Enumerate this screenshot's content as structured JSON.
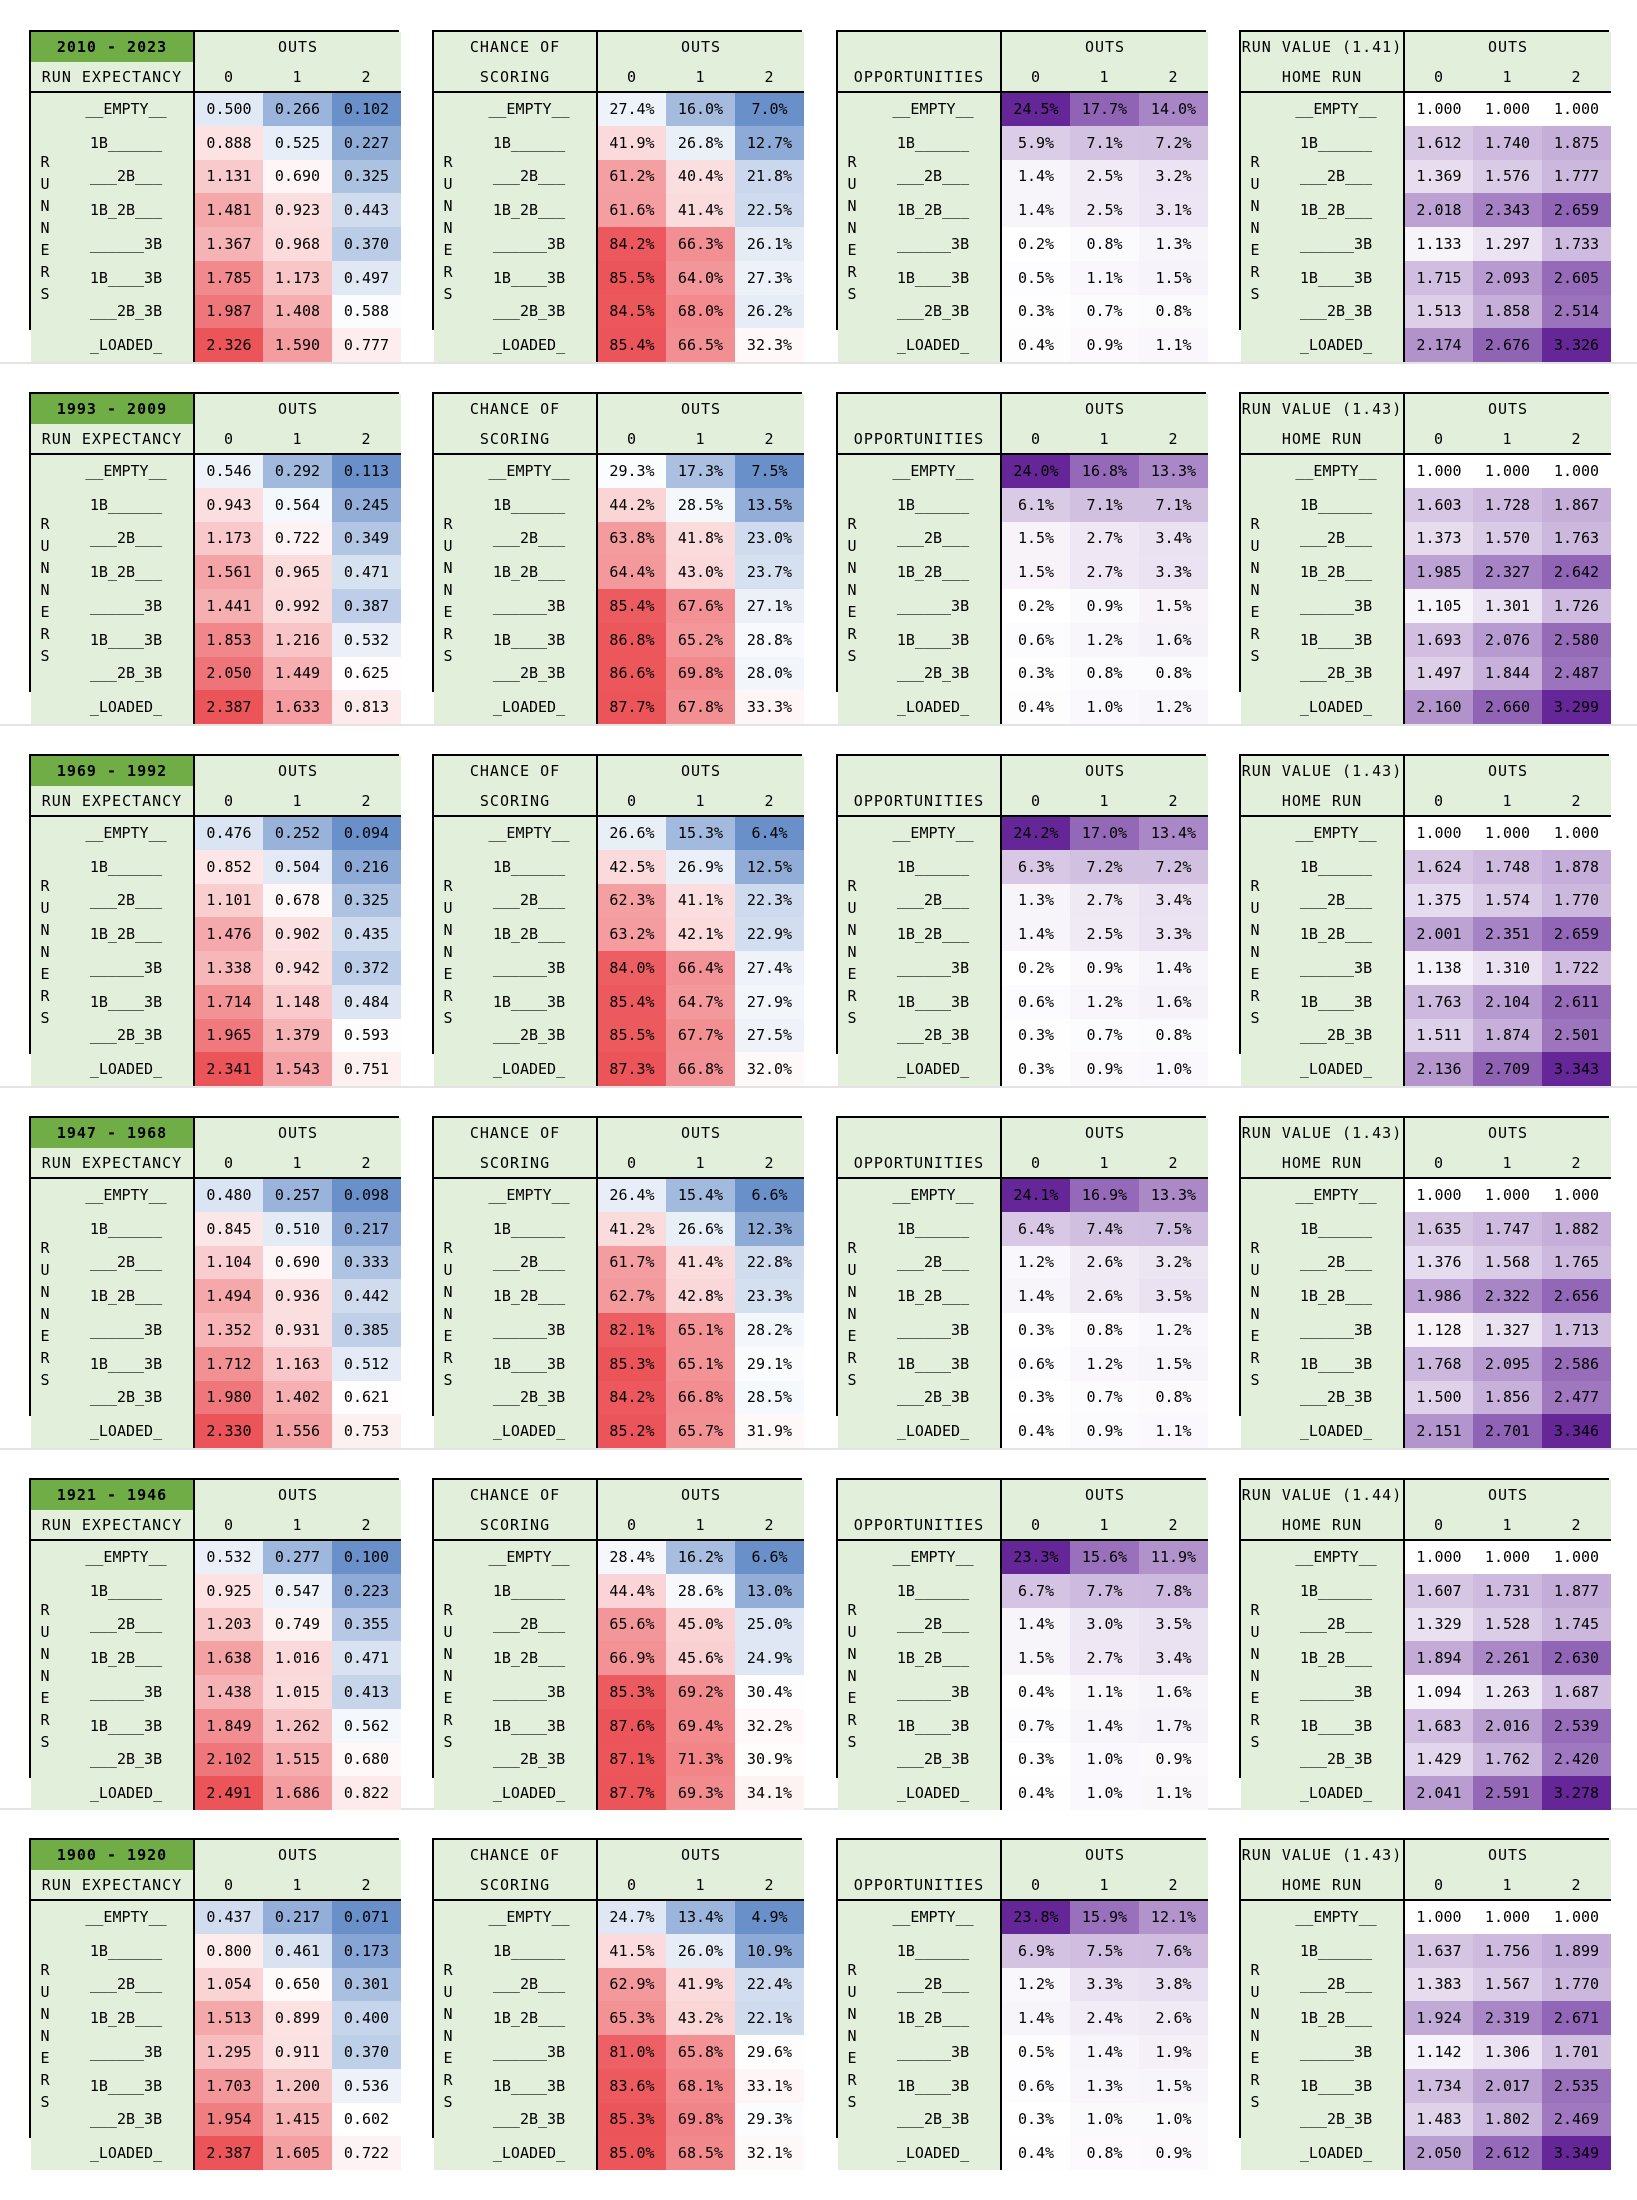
{
  "labels": {
    "outs": "OUTS",
    "run_expectancy": "RUN EXPECTANCY",
    "chance_of": "CHANCE OF",
    "scoring": "SCORING",
    "opportunities": "OPPORTUNITIES",
    "home_run": "HOME RUN",
    "out_headers": [
      "0",
      "1",
      "2"
    ],
    "runners_letters": [
      "R",
      "U",
      "N",
      "N",
      "E",
      "R",
      "S"
    ],
    "states": [
      "__EMPTY__",
      "1B______",
      "___2B___",
      "1B_2B___",
      "______3B",
      "1B____3B",
      "___2B_3B",
      "_LOADED_"
    ]
  },
  "colors": {
    "label_bg": "#e2efda",
    "range_bg": "#70ad47",
    "red": "#e8363c",
    "blue": "#4f7cc0",
    "purple": "#5d1c93"
  },
  "eras": [
    {
      "range": "2010 - 2023",
      "rv_title": "RUN VALUE (1.41)",
      "run_expectancy": [
        [
          "0.500",
          "0.266",
          "0.102"
        ],
        [
          "0.888",
          "0.525",
          "0.227"
        ],
        [
          "1.131",
          "0.690",
          "0.325"
        ],
        [
          "1.481",
          "0.923",
          "0.443"
        ],
        [
          "1.367",
          "0.968",
          "0.370"
        ],
        [
          "1.785",
          "1.173",
          "0.497"
        ],
        [
          "1.987",
          "1.408",
          "0.588"
        ],
        [
          "2.326",
          "1.590",
          "0.777"
        ]
      ],
      "chance_of_scoring": [
        [
          "27.4%",
          "16.0%",
          "7.0%"
        ],
        [
          "41.9%",
          "26.8%",
          "12.7%"
        ],
        [
          "61.2%",
          "40.4%",
          "21.8%"
        ],
        [
          "61.6%",
          "41.4%",
          "22.5%"
        ],
        [
          "84.2%",
          "66.3%",
          "26.1%"
        ],
        [
          "85.5%",
          "64.0%",
          "27.3%"
        ],
        [
          "84.5%",
          "68.0%",
          "26.2%"
        ],
        [
          "85.4%",
          "66.5%",
          "32.3%"
        ]
      ],
      "opportunities": [
        [
          "24.5%",
          "17.7%",
          "14.0%"
        ],
        [
          "5.9%",
          "7.1%",
          "7.2%"
        ],
        [
          "1.4%",
          "2.5%",
          "3.2%"
        ],
        [
          "1.4%",
          "2.5%",
          "3.1%"
        ],
        [
          "0.2%",
          "0.8%",
          "1.3%"
        ],
        [
          "0.5%",
          "1.1%",
          "1.5%"
        ],
        [
          "0.3%",
          "0.7%",
          "0.8%"
        ],
        [
          "0.4%",
          "0.9%",
          "1.1%"
        ]
      ],
      "home_run": [
        [
          "1.000",
          "1.000",
          "1.000"
        ],
        [
          "1.612",
          "1.740",
          "1.875"
        ],
        [
          "1.369",
          "1.576",
          "1.777"
        ],
        [
          "2.018",
          "2.343",
          "2.659"
        ],
        [
          "1.133",
          "1.297",
          "1.733"
        ],
        [
          "1.715",
          "2.093",
          "2.605"
        ],
        [
          "1.513",
          "1.858",
          "2.514"
        ],
        [
          "2.174",
          "2.676",
          "3.326"
        ]
      ]
    },
    {
      "range": "1993 - 2009",
      "rv_title": "RUN VALUE (1.43)",
      "run_expectancy": [
        [
          "0.546",
          "0.292",
          "0.113"
        ],
        [
          "0.943",
          "0.564",
          "0.245"
        ],
        [
          "1.173",
          "0.722",
          "0.349"
        ],
        [
          "1.561",
          "0.965",
          "0.471"
        ],
        [
          "1.441",
          "0.992",
          "0.387"
        ],
        [
          "1.853",
          "1.216",
          "0.532"
        ],
        [
          "2.050",
          "1.449",
          "0.625"
        ],
        [
          "2.387",
          "1.633",
          "0.813"
        ]
      ],
      "chance_of_scoring": [
        [
          "29.3%",
          "17.3%",
          "7.5%"
        ],
        [
          "44.2%",
          "28.5%",
          "13.5%"
        ],
        [
          "63.8%",
          "41.8%",
          "23.0%"
        ],
        [
          "64.4%",
          "43.0%",
          "23.7%"
        ],
        [
          "85.4%",
          "67.6%",
          "27.1%"
        ],
        [
          "86.8%",
          "65.2%",
          "28.8%"
        ],
        [
          "86.6%",
          "69.8%",
          "28.0%"
        ],
        [
          "87.7%",
          "67.8%",
          "33.3%"
        ]
      ],
      "opportunities": [
        [
          "24.0%",
          "16.8%",
          "13.3%"
        ],
        [
          "6.1%",
          "7.1%",
          "7.1%"
        ],
        [
          "1.5%",
          "2.7%",
          "3.4%"
        ],
        [
          "1.5%",
          "2.7%",
          "3.3%"
        ],
        [
          "0.2%",
          "0.9%",
          "1.5%"
        ],
        [
          "0.6%",
          "1.2%",
          "1.6%"
        ],
        [
          "0.3%",
          "0.8%",
          "0.8%"
        ],
        [
          "0.4%",
          "1.0%",
          "1.2%"
        ]
      ],
      "home_run": [
        [
          "1.000",
          "1.000",
          "1.000"
        ],
        [
          "1.603",
          "1.728",
          "1.867"
        ],
        [
          "1.373",
          "1.570",
          "1.763"
        ],
        [
          "1.985",
          "2.327",
          "2.642"
        ],
        [
          "1.105",
          "1.301",
          "1.726"
        ],
        [
          "1.693",
          "2.076",
          "2.580"
        ],
        [
          "1.497",
          "1.844",
          "2.487"
        ],
        [
          "2.160",
          "2.660",
          "3.299"
        ]
      ]
    },
    {
      "range": "1969 - 1992",
      "rv_title": "RUN VALUE (1.43)",
      "run_expectancy": [
        [
          "0.476",
          "0.252",
          "0.094"
        ],
        [
          "0.852",
          "0.504",
          "0.216"
        ],
        [
          "1.101",
          "0.678",
          "0.325"
        ],
        [
          "1.476",
          "0.902",
          "0.435"
        ],
        [
          "1.338",
          "0.942",
          "0.372"
        ],
        [
          "1.714",
          "1.148",
          "0.484"
        ],
        [
          "1.965",
          "1.379",
          "0.593"
        ],
        [
          "2.341",
          "1.543",
          "0.751"
        ]
      ],
      "chance_of_scoring": [
        [
          "26.6%",
          "15.3%",
          "6.4%"
        ],
        [
          "42.5%",
          "26.9%",
          "12.5%"
        ],
        [
          "62.3%",
          "41.1%",
          "22.3%"
        ],
        [
          "63.2%",
          "42.1%",
          "22.9%"
        ],
        [
          "84.0%",
          "66.4%",
          "27.4%"
        ],
        [
          "85.4%",
          "64.7%",
          "27.9%"
        ],
        [
          "85.5%",
          "67.7%",
          "27.5%"
        ],
        [
          "87.3%",
          "66.8%",
          "32.0%"
        ]
      ],
      "opportunities": [
        [
          "24.2%",
          "17.0%",
          "13.4%"
        ],
        [
          "6.3%",
          "7.2%",
          "7.2%"
        ],
        [
          "1.3%",
          "2.7%",
          "3.4%"
        ],
        [
          "1.4%",
          "2.5%",
          "3.3%"
        ],
        [
          "0.2%",
          "0.9%",
          "1.4%"
        ],
        [
          "0.6%",
          "1.2%",
          "1.6%"
        ],
        [
          "0.3%",
          "0.7%",
          "0.8%"
        ],
        [
          "0.3%",
          "0.9%",
          "1.0%"
        ]
      ],
      "home_run": [
        [
          "1.000",
          "1.000",
          "1.000"
        ],
        [
          "1.624",
          "1.748",
          "1.878"
        ],
        [
          "1.375",
          "1.574",
          "1.770"
        ],
        [
          "2.001",
          "2.351",
          "2.659"
        ],
        [
          "1.138",
          "1.310",
          "1.722"
        ],
        [
          "1.763",
          "2.104",
          "2.611"
        ],
        [
          "1.511",
          "1.874",
          "2.501"
        ],
        [
          "2.136",
          "2.709",
          "3.343"
        ]
      ]
    },
    {
      "range": "1947 - 1968",
      "rv_title": "RUN VALUE (1.43)",
      "run_expectancy": [
        [
          "0.480",
          "0.257",
          "0.098"
        ],
        [
          "0.845",
          "0.510",
          "0.217"
        ],
        [
          "1.104",
          "0.690",
          "0.333"
        ],
        [
          "1.494",
          "0.936",
          "0.442"
        ],
        [
          "1.352",
          "0.931",
          "0.385"
        ],
        [
          "1.712",
          "1.163",
          "0.512"
        ],
        [
          "1.980",
          "1.402",
          "0.621"
        ],
        [
          "2.330",
          "1.556",
          "0.753"
        ]
      ],
      "chance_of_scoring": [
        [
          "26.4%",
          "15.4%",
          "6.6%"
        ],
        [
          "41.2%",
          "26.6%",
          "12.3%"
        ],
        [
          "61.7%",
          "41.4%",
          "22.8%"
        ],
        [
          "62.7%",
          "42.8%",
          "23.3%"
        ],
        [
          "82.1%",
          "65.1%",
          "28.2%"
        ],
        [
          "85.3%",
          "65.1%",
          "29.1%"
        ],
        [
          "84.2%",
          "66.8%",
          "28.5%"
        ],
        [
          "85.2%",
          "65.7%",
          "31.9%"
        ]
      ],
      "opportunities": [
        [
          "24.1%",
          "16.9%",
          "13.3%"
        ],
        [
          "6.4%",
          "7.4%",
          "7.5%"
        ],
        [
          "1.2%",
          "2.6%",
          "3.2%"
        ],
        [
          "1.4%",
          "2.6%",
          "3.5%"
        ],
        [
          "0.3%",
          "0.8%",
          "1.2%"
        ],
        [
          "0.6%",
          "1.2%",
          "1.5%"
        ],
        [
          "0.3%",
          "0.7%",
          "0.8%"
        ],
        [
          "0.4%",
          "0.9%",
          "1.1%"
        ]
      ],
      "home_run": [
        [
          "1.000",
          "1.000",
          "1.000"
        ],
        [
          "1.635",
          "1.747",
          "1.882"
        ],
        [
          "1.376",
          "1.568",
          "1.765"
        ],
        [
          "1.986",
          "2.322",
          "2.656"
        ],
        [
          "1.128",
          "1.327",
          "1.713"
        ],
        [
          "1.768",
          "2.095",
          "2.586"
        ],
        [
          "1.500",
          "1.856",
          "2.477"
        ],
        [
          "2.151",
          "2.701",
          "3.346"
        ]
      ]
    },
    {
      "range": "1921 - 1946",
      "rv_title": "RUN VALUE (1.44)",
      "run_expectancy": [
        [
          "0.532",
          "0.277",
          "0.100"
        ],
        [
          "0.925",
          "0.547",
          "0.223"
        ],
        [
          "1.203",
          "0.749",
          "0.355"
        ],
        [
          "1.638",
          "1.016",
          "0.471"
        ],
        [
          "1.438",
          "1.015",
          "0.413"
        ],
        [
          "1.849",
          "1.262",
          "0.562"
        ],
        [
          "2.102",
          "1.515",
          "0.680"
        ],
        [
          "2.491",
          "1.686",
          "0.822"
        ]
      ],
      "chance_of_scoring": [
        [
          "28.4%",
          "16.2%",
          "6.6%"
        ],
        [
          "44.4%",
          "28.6%",
          "13.0%"
        ],
        [
          "65.6%",
          "45.0%",
          "25.0%"
        ],
        [
          "66.9%",
          "45.6%",
          "24.9%"
        ],
        [
          "85.3%",
          "69.2%",
          "30.4%"
        ],
        [
          "87.6%",
          "69.4%",
          "32.2%"
        ],
        [
          "87.1%",
          "71.3%",
          "30.9%"
        ],
        [
          "87.7%",
          "69.3%",
          "34.1%"
        ]
      ],
      "opportunities": [
        [
          "23.3%",
          "15.6%",
          "11.9%"
        ],
        [
          "6.7%",
          "7.7%",
          "7.8%"
        ],
        [
          "1.4%",
          "3.0%",
          "3.5%"
        ],
        [
          "1.5%",
          "2.7%",
          "3.4%"
        ],
        [
          "0.4%",
          "1.1%",
          "1.6%"
        ],
        [
          "0.7%",
          "1.4%",
          "1.7%"
        ],
        [
          "0.3%",
          "1.0%",
          "0.9%"
        ],
        [
          "0.4%",
          "1.0%",
          "1.1%"
        ]
      ],
      "home_run": [
        [
          "1.000",
          "1.000",
          "1.000"
        ],
        [
          "1.607",
          "1.731",
          "1.877"
        ],
        [
          "1.329",
          "1.528",
          "1.745"
        ],
        [
          "1.894",
          "2.261",
          "2.630"
        ],
        [
          "1.094",
          "1.263",
          "1.687"
        ],
        [
          "1.683",
          "2.016",
          "2.539"
        ],
        [
          "1.429",
          "1.762",
          "2.420"
        ],
        [
          "2.041",
          "2.591",
          "3.278"
        ]
      ]
    },
    {
      "range": "1900 - 1920",
      "rv_title": "RUN VALUE (1.43)",
      "run_expectancy": [
        [
          "0.437",
          "0.217",
          "0.071"
        ],
        [
          "0.800",
          "0.461",
          "0.173"
        ],
        [
          "1.054",
          "0.650",
          "0.301"
        ],
        [
          "1.513",
          "0.899",
          "0.400"
        ],
        [
          "1.295",
          "0.911",
          "0.370"
        ],
        [
          "1.703",
          "1.200",
          "0.536"
        ],
        [
          "1.954",
          "1.415",
          "0.602"
        ],
        [
          "2.387",
          "1.605",
          "0.722"
        ]
      ],
      "chance_of_scoring": [
        [
          "24.7%",
          "13.4%",
          "4.9%"
        ],
        [
          "41.5%",
          "26.0%",
          "10.9%"
        ],
        [
          "62.9%",
          "41.9%",
          "22.4%"
        ],
        [
          "65.3%",
          "43.2%",
          "22.1%"
        ],
        [
          "81.0%",
          "65.8%",
          "29.6%"
        ],
        [
          "83.6%",
          "68.1%",
          "33.1%"
        ],
        [
          "85.3%",
          "69.8%",
          "29.3%"
        ],
        [
          "85.0%",
          "68.5%",
          "32.1%"
        ]
      ],
      "opportunities": [
        [
          "23.8%",
          "15.9%",
          "12.1%"
        ],
        [
          "6.9%",
          "7.5%",
          "7.6%"
        ],
        [
          "1.2%",
          "3.3%",
          "3.8%"
        ],
        [
          "1.4%",
          "2.4%",
          "2.6%"
        ],
        [
          "0.5%",
          "1.4%",
          "1.9%"
        ],
        [
          "0.6%",
          "1.3%",
          "1.5%"
        ],
        [
          "0.3%",
          "1.0%",
          "1.0%"
        ],
        [
          "0.4%",
          "0.8%",
          "0.9%"
        ]
      ],
      "home_run": [
        [
          "1.000",
          "1.000",
          "1.000"
        ],
        [
          "1.637",
          "1.756",
          "1.899"
        ],
        [
          "1.383",
          "1.567",
          "1.770"
        ],
        [
          "1.924",
          "2.319",
          "2.671"
        ],
        [
          "1.142",
          "1.306",
          "1.701"
        ],
        [
          "1.734",
          "2.017",
          "2.535"
        ],
        [
          "1.483",
          "1.802",
          "2.469"
        ],
        [
          "2.050",
          "2.612",
          "3.349"
        ]
      ]
    }
  ]
}
